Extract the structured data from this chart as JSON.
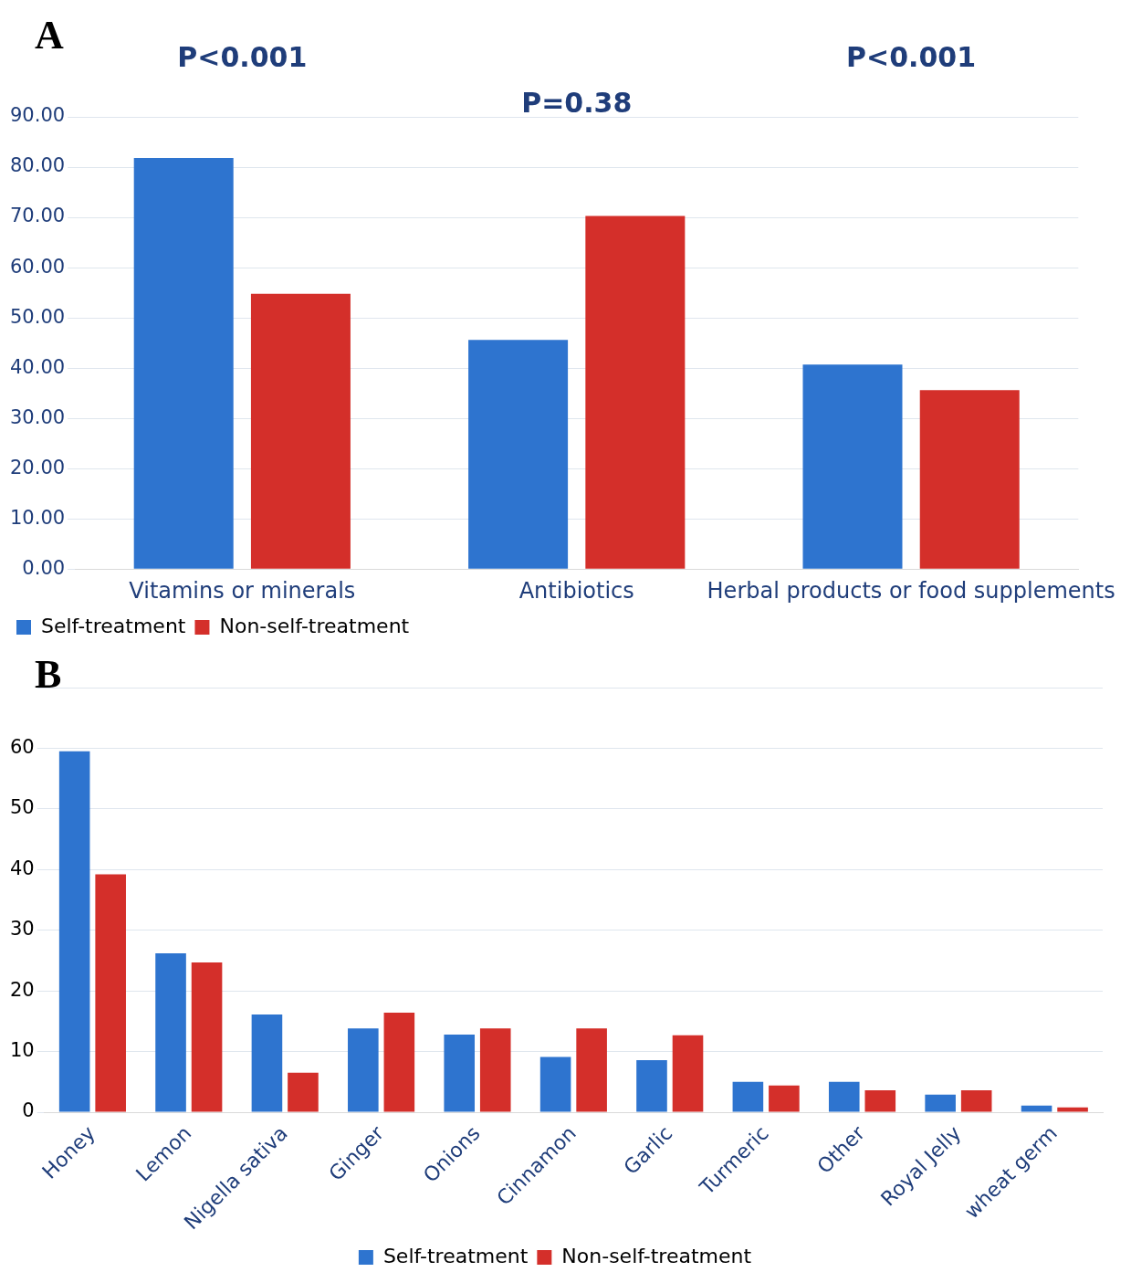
{
  "chart_data": [
    {
      "type": "bar",
      "title": "A",
      "categories": [
        "Vitamins or minerals",
        "Antibiotics",
        "Herbal products or food supplements"
      ],
      "series": [
        {
          "name": "Self-treatment",
          "color": "#2e74cf",
          "values": [
            81.8,
            45.6,
            40.7
          ]
        },
        {
          "name": "Non-self-treatment",
          "color": "#d42f2a",
          "values": [
            54.8,
            70.3,
            35.6
          ]
        }
      ],
      "ylim": [
        0,
        90
      ],
      "yticks": [
        {
          "value": 0,
          "label": "0.00"
        },
        {
          "value": 10,
          "label": "10.00"
        },
        {
          "value": 20,
          "label": "20.00"
        },
        {
          "value": 30,
          "label": "30.00"
        },
        {
          "value": 40,
          "label": "40.00"
        },
        {
          "value": 50,
          "label": "50.00"
        },
        {
          "value": 60,
          "label": "60.00"
        },
        {
          "value": 70,
          "label": "70.00"
        },
        {
          "value": 80,
          "label": "80.00"
        },
        {
          "value": 90,
          "label": "90.00"
        }
      ],
      "annotations": [
        "P<0.001",
        "P=0.38",
        "P<0.001"
      ],
      "grid": "y",
      "legend": "bottom left"
    },
    {
      "type": "bar",
      "title": "B",
      "categories": [
        "Honey",
        "Lemon",
        "Nigella sativa",
        "Ginger",
        "Onions",
        "Cinnamon",
        "Garlic",
        "Turmeric",
        "Other",
        "Royal Jelly",
        "wheat germ"
      ],
      "series": [
        {
          "name": "Self-treatment",
          "color": "#2e74cf",
          "values": [
            59.5,
            26.2,
            16.1,
            13.8,
            12.8,
            9.1,
            8.6,
            5.0,
            5.0,
            2.9,
            1.1
          ]
        },
        {
          "name": "Non-self-treatment",
          "color": "#d42f2a",
          "values": [
            39.2,
            24.7,
            6.5,
            16.4,
            13.8,
            13.8,
            12.7,
            4.4,
            3.6,
            3.6,
            0.8
          ]
        }
      ],
      "ylim": [
        0,
        70
      ],
      "yticks": [
        0,
        10,
        20,
        30,
        40,
        50,
        60,
        {
          "value": 70,
          "label": null
        }
      ],
      "grid": "y",
      "legend": "bottom"
    }
  ]
}
